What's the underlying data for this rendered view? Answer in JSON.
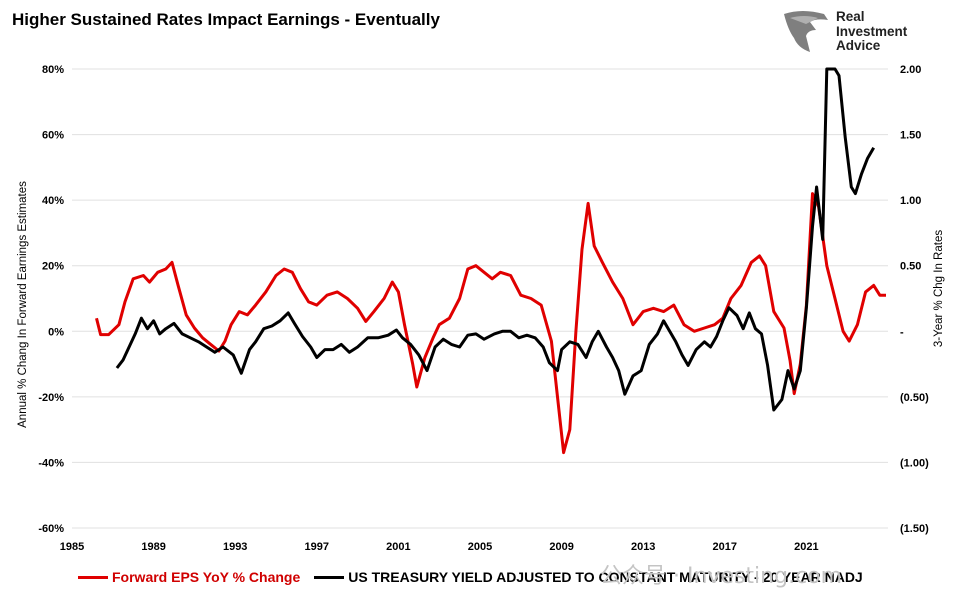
{
  "title": "Higher Sustained Rates Impact Earnings - Eventually",
  "logo": {
    "brand_lines": [
      "Real",
      "Investment",
      "Advice"
    ],
    "icon": "eagle-head-logo-icon"
  },
  "watermark": "公众号 · Investing.com",
  "colors": {
    "eps": "#e00000",
    "rates": "#000000",
    "grid": "#e0e0e0"
  },
  "chart_data": {
    "type": "line",
    "title": "Higher Sustained Rates Impact Earnings - Eventually",
    "xlabel": "",
    "ylabel": "Annual % Chang In Forward Earnings Estimates",
    "y2label": "3-Year % Chg In Rates",
    "xlim": [
      1985,
      2025
    ],
    "ylim": [
      -60,
      80
    ],
    "y2lim": [
      -1.5,
      2.0
    ],
    "x_ticks": [
      "1985",
      "1989",
      "1993",
      "1997",
      "2001",
      "2005",
      "2009",
      "2013",
      "2017",
      "2021"
    ],
    "y_ticks": [
      "80%",
      "60%",
      "40%",
      "20%",
      "0%",
      "-20%",
      "-40%",
      "-60%"
    ],
    "y2_ticks": [
      "2.00",
      "1.50",
      "1.00",
      "0.50",
      "-",
      "(0.50)",
      "(1.00)",
      "(1.50)"
    ],
    "grid": true,
    "legend_position": "bottom",
    "series": [
      {
        "name": "Forward EPS YoY % Change",
        "axis": "left",
        "color": "#e00000",
        "points": [
          [
            1986.2,
            4
          ],
          [
            1986.4,
            -1
          ],
          [
            1986.8,
            -1
          ],
          [
            1987.3,
            2
          ],
          [
            1987.6,
            9
          ],
          [
            1988.0,
            16
          ],
          [
            1988.5,
            17
          ],
          [
            1988.8,
            15
          ],
          [
            1989.2,
            18
          ],
          [
            1989.6,
            19
          ],
          [
            1989.9,
            21
          ],
          [
            1990.2,
            14
          ],
          [
            1990.6,
            5
          ],
          [
            1991.0,
            1
          ],
          [
            1991.4,
            -2
          ],
          [
            1991.8,
            -4
          ],
          [
            1992.2,
            -6
          ],
          [
            1992.5,
            -3
          ],
          [
            1992.8,
            2
          ],
          [
            1993.2,
            6
          ],
          [
            1993.6,
            5
          ],
          [
            1994.0,
            8
          ],
          [
            1994.5,
            12
          ],
          [
            1995.0,
            17
          ],
          [
            1995.4,
            19
          ],
          [
            1995.8,
            18
          ],
          [
            1996.2,
            13
          ],
          [
            1996.6,
            9
          ],
          [
            1997.0,
            8
          ],
          [
            1997.5,
            11
          ],
          [
            1998.0,
            12
          ],
          [
            1998.5,
            10
          ],
          [
            1999.0,
            7
          ],
          [
            1999.4,
            3
          ],
          [
            1999.8,
            6
          ],
          [
            2000.3,
            10
          ],
          [
            2000.7,
            15
          ],
          [
            2001.0,
            12
          ],
          [
            2001.3,
            2
          ],
          [
            2001.7,
            -10
          ],
          [
            2001.9,
            -17
          ],
          [
            2002.3,
            -8
          ],
          [
            2002.7,
            -2
          ],
          [
            2003.0,
            2
          ],
          [
            2003.5,
            4
          ],
          [
            2004.0,
            10
          ],
          [
            2004.4,
            19
          ],
          [
            2004.8,
            20
          ],
          [
            2005.2,
            18
          ],
          [
            2005.6,
            16
          ],
          [
            2006.0,
            18
          ],
          [
            2006.5,
            17
          ],
          [
            2007.0,
            11
          ],
          [
            2007.5,
            10
          ],
          [
            2008.0,
            8
          ],
          [
            2008.5,
            -3
          ],
          [
            2008.8,
            -20
          ],
          [
            2009.1,
            -37
          ],
          [
            2009.4,
            -30
          ],
          [
            2009.7,
            0
          ],
          [
            2010.0,
            25
          ],
          [
            2010.3,
            39
          ],
          [
            2010.6,
            26
          ],
          [
            2011.0,
            21
          ],
          [
            2011.5,
            15
          ],
          [
            2012.0,
            10
          ],
          [
            2012.5,
            2
          ],
          [
            2013.0,
            6
          ],
          [
            2013.5,
            7
          ],
          [
            2014.0,
            6
          ],
          [
            2014.5,
            8
          ],
          [
            2015.0,
            2
          ],
          [
            2015.5,
            0
          ],
          [
            2016.0,
            1
          ],
          [
            2016.5,
            2
          ],
          [
            2016.9,
            4
          ],
          [
            2017.3,
            10
          ],
          [
            2017.8,
            14
          ],
          [
            2018.3,
            21
          ],
          [
            2018.7,
            23
          ],
          [
            2019.0,
            20
          ],
          [
            2019.4,
            6
          ],
          [
            2019.9,
            1
          ],
          [
            2020.2,
            -9
          ],
          [
            2020.4,
            -19
          ],
          [
            2020.7,
            -10
          ],
          [
            2021.0,
            8
          ],
          [
            2021.3,
            42
          ],
          [
            2021.6,
            38
          ],
          [
            2022.0,
            20
          ],
          [
            2022.4,
            10
          ],
          [
            2022.8,
            0
          ],
          [
            2023.1,
            -3
          ],
          [
            2023.5,
            2
          ],
          [
            2023.9,
            12
          ],
          [
            2024.3,
            14
          ],
          [
            2024.6,
            11
          ],
          [
            2024.9,
            11
          ]
        ]
      },
      {
        "name": "US TREASURY YIELD ADJUSTED TO CONSTANT MATURITY - 20 YEAR NADJ",
        "axis": "right",
        "color": "#000000",
        "points": [
          [
            1987.2,
            -0.28
          ],
          [
            1987.5,
            -0.22
          ],
          [
            1987.8,
            -0.12
          ],
          [
            1988.1,
            -0.02
          ],
          [
            1988.4,
            0.1
          ],
          [
            1988.7,
            0.02
          ],
          [
            1989.0,
            0.08
          ],
          [
            1989.3,
            -0.02
          ],
          [
            1989.6,
            0.02
          ],
          [
            1990.0,
            0.06
          ],
          [
            1990.4,
            -0.02
          ],
          [
            1990.8,
            -0.05
          ],
          [
            1991.2,
            -0.08
          ],
          [
            1991.6,
            -0.12
          ],
          [
            1992.0,
            -0.16
          ],
          [
            1992.4,
            -0.12
          ],
          [
            1992.9,
            -0.18
          ],
          [
            1993.3,
            -0.32
          ],
          [
            1993.7,
            -0.14
          ],
          [
            1994.0,
            -0.08
          ],
          [
            1994.4,
            0.02
          ],
          [
            1994.8,
            0.04
          ],
          [
            1995.2,
            0.08
          ],
          [
            1995.6,
            0.14
          ],
          [
            1995.9,
            0.06
          ],
          [
            1996.3,
            -0.04
          ],
          [
            1996.7,
            -0.12
          ],
          [
            1997.0,
            -0.2
          ],
          [
            1997.4,
            -0.14
          ],
          [
            1997.8,
            -0.14
          ],
          [
            1998.2,
            -0.1
          ],
          [
            1998.6,
            -0.16
          ],
          [
            1999.0,
            -0.12
          ],
          [
            1999.5,
            -0.05
          ],
          [
            2000.0,
            -0.05
          ],
          [
            2000.5,
            -0.03
          ],
          [
            2000.9,
            0.01
          ],
          [
            2001.2,
            -0.05
          ],
          [
            2001.6,
            -0.1
          ],
          [
            2002.0,
            -0.18
          ],
          [
            2002.4,
            -0.3
          ],
          [
            2002.8,
            -0.12
          ],
          [
            2003.2,
            -0.06
          ],
          [
            2003.6,
            -0.1
          ],
          [
            2004.0,
            -0.12
          ],
          [
            2004.4,
            -0.03
          ],
          [
            2004.8,
            -0.02
          ],
          [
            2005.2,
            -0.06
          ],
          [
            2005.7,
            -0.02
          ],
          [
            2006.1,
            0.0
          ],
          [
            2006.5,
            0.0
          ],
          [
            2006.9,
            -0.05
          ],
          [
            2007.3,
            -0.03
          ],
          [
            2007.7,
            -0.05
          ],
          [
            2008.1,
            -0.12
          ],
          [
            2008.4,
            -0.24
          ],
          [
            2008.8,
            -0.3
          ],
          [
            2009.0,
            -0.14
          ],
          [
            2009.4,
            -0.08
          ],
          [
            2009.8,
            -0.1
          ],
          [
            2010.2,
            -0.2
          ],
          [
            2010.5,
            -0.08
          ],
          [
            2010.8,
            0.0
          ],
          [
            2011.2,
            -0.12
          ],
          [
            2011.5,
            -0.2
          ],
          [
            2011.8,
            -0.3
          ],
          [
            2012.1,
            -0.48
          ],
          [
            2012.5,
            -0.34
          ],
          [
            2012.9,
            -0.3
          ],
          [
            2013.3,
            -0.1
          ],
          [
            2013.7,
            -0.02
          ],
          [
            2014.0,
            0.08
          ],
          [
            2014.3,
            0.0
          ],
          [
            2014.6,
            -0.08
          ],
          [
            2014.9,
            -0.18
          ],
          [
            2015.2,
            -0.26
          ],
          [
            2015.6,
            -0.14
          ],
          [
            2016.0,
            -0.08
          ],
          [
            2016.3,
            -0.12
          ],
          [
            2016.6,
            -0.04
          ],
          [
            2016.9,
            0.08
          ],
          [
            2017.2,
            0.18
          ],
          [
            2017.6,
            0.12
          ],
          [
            2017.9,
            0.02
          ],
          [
            2018.2,
            0.14
          ],
          [
            2018.5,
            0.02
          ],
          [
            2018.8,
            -0.02
          ],
          [
            2019.1,
            -0.26
          ],
          [
            2019.4,
            -0.6
          ],
          [
            2019.8,
            -0.52
          ],
          [
            2020.1,
            -0.3
          ],
          [
            2020.4,
            -0.44
          ],
          [
            2020.7,
            -0.3
          ],
          [
            2021.0,
            0.18
          ],
          [
            2021.3,
            0.8
          ],
          [
            2021.5,
            1.1
          ],
          [
            2021.8,
            0.7
          ],
          [
            2022.0,
            2.0
          ],
          [
            2022.4,
            2.0
          ],
          [
            2022.6,
            1.95
          ],
          [
            2022.9,
            1.48
          ],
          [
            2023.2,
            1.1
          ],
          [
            2023.4,
            1.05
          ],
          [
            2023.7,
            1.2
          ],
          [
            2024.0,
            1.32
          ],
          [
            2024.3,
            1.4
          ]
        ]
      }
    ]
  },
  "legend": [
    {
      "label": "Forward EPS YoY % Change",
      "color": "#e00000"
    },
    {
      "label": "US TREASURY YIELD ADJUSTED TO CONSTANT MATURITY - 20 YEAR NADJ",
      "color": "#000000"
    }
  ]
}
